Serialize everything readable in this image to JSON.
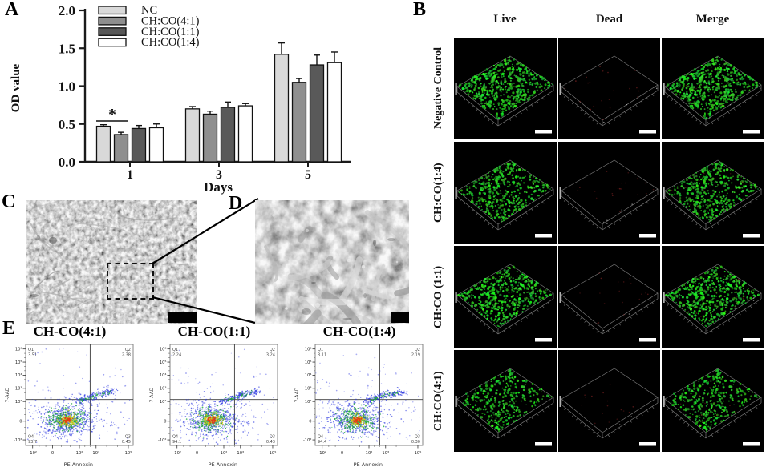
{
  "figure_labels": {
    "a": "A",
    "b": "B",
    "c": "C",
    "d": "D",
    "e": "E"
  },
  "chart_data": {
    "type": "bar",
    "title": "",
    "xlabel": "Days",
    "ylabel": "OD value",
    "ylim": [
      0,
      2
    ],
    "yticks": [
      "0.0",
      "0.5",
      "1.0",
      "1.5",
      "2.0"
    ],
    "categories": [
      "1",
      "3",
      "5"
    ],
    "series": [
      {
        "name": "NC",
        "color": "#d9d9d9",
        "values": [
          0.47,
          0.7,
          1.42
        ],
        "errors": [
          0.02,
          0.03,
          0.15
        ]
      },
      {
        "name": "CH:CO(4:1)",
        "color": "#8f8f8f",
        "values": [
          0.36,
          0.63,
          1.05
        ],
        "errors": [
          0.03,
          0.04,
          0.05
        ]
      },
      {
        "name": "CH:CO(1:1)",
        "color": "#595959",
        "values": [
          0.44,
          0.72,
          1.28
        ],
        "errors": [
          0.04,
          0.07,
          0.13
        ]
      },
      {
        "name": "CH:CO(1:4)",
        "color": "#ffffff",
        "values": [
          0.45,
          0.74,
          1.31
        ],
        "errors": [
          0.05,
          0.03,
          0.14
        ]
      }
    ],
    "significance": {
      "category_index": 0,
      "bar_indices": [
        0,
        1
      ],
      "label": "*"
    },
    "legend_position": "top-left-inside",
    "grid": false
  },
  "panel_b": {
    "columns": [
      "Live",
      "Dead",
      "Merge"
    ],
    "rows": [
      {
        "label": "Negative Control",
        "live_dots": 520,
        "dead_dots": 22
      },
      {
        "label": "CH:CO(1:4)",
        "live_dots": 400,
        "dead_dots": 20
      },
      {
        "label": "CH:CO (1:1)",
        "live_dots": 470,
        "dead_dots": 18
      },
      {
        "label": "CH:CO(4:1)",
        "live_dots": 320,
        "dead_dots": 16
      }
    ],
    "live_color": "#1ed21e",
    "dead_color": "#b23030",
    "scalebar_color": "#ffffff"
  },
  "panel_c": {
    "scalebar": true
  },
  "panel_d": {
    "scalebar": true
  },
  "panel_e": {
    "xlabel": "PE Annexin-",
    "ylabel": "7-AAD",
    "xticks": [
      "-10²",
      "0",
      "10²",
      "10³",
      "10⁵"
    ],
    "yticks": [
      "10⁶",
      "10⁵",
      "10⁴",
      "10³",
      "10²",
      "0",
      "-10²"
    ],
    "density_colors": [
      "#2a35e0",
      "#1fa83c",
      "#d9cb1e",
      "#e33d12"
    ],
    "plots": [
      {
        "title": "CH-CO(4:1)",
        "quadrants": {
          "q1_label": "Q1",
          "q1": "3.51",
          "q2_label": "Q2",
          "q2": "2.38",
          "q3_label": "Q3",
          "q3": "0.45",
          "q4_label": "Q4",
          "q4": "93.7"
        }
      },
      {
        "title": "CH-CO(1:1)",
        "quadrants": {
          "q1_label": "Q1",
          "q1": "2.24",
          "q2_label": "Q2",
          "q2": "3.24",
          "q3_label": "Q3",
          "q3": "0.43",
          "q4_label": "Q4",
          "q4": "94.1"
        }
      },
      {
        "title": "CH-CO(1:4)",
        "quadrants": {
          "q1_label": "Q1",
          "q1": "3.11",
          "q2_label": "Q2",
          "q2": "2.19",
          "q3_label": "Q3",
          "q3": "0.30",
          "q4_label": "Q4",
          "q4": "94.4"
        }
      }
    ]
  }
}
